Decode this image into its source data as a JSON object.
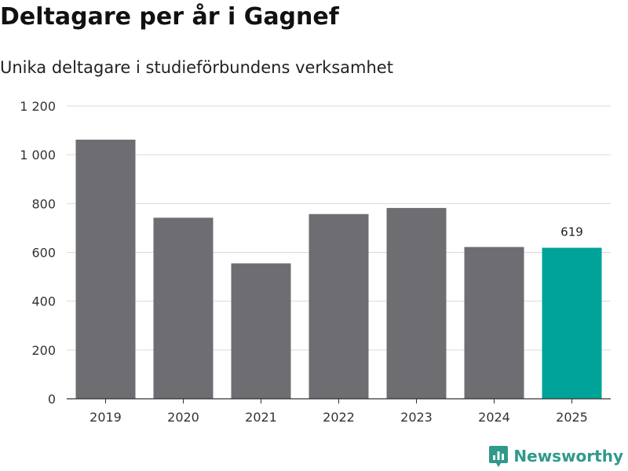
{
  "header": {
    "title": "Deltagare per år i Gagnef",
    "subtitle": "Unika deltagare i studieförbundens verksamhet"
  },
  "brand": {
    "name": "Newsworthy",
    "icon": "newsworthy-logo-icon",
    "color": "#2f9a8b"
  },
  "colors": {
    "bar": "#6e6d72",
    "highlight": "#00a398",
    "grid": "#d9d9d9",
    "axis": "#333333"
  },
  "chart_data": {
    "type": "bar",
    "title": "Deltagare per år i Gagnef",
    "subtitle": "Unika deltagare i studieförbundens verksamhet",
    "xlabel": "",
    "ylabel": "",
    "categories": [
      "2019",
      "2020",
      "2021",
      "2022",
      "2023",
      "2024",
      "2025"
    ],
    "values": [
      1062,
      742,
      555,
      757,
      782,
      622,
      619
    ],
    "highlight_index": 6,
    "data_labels": [
      {
        "category": "2025",
        "text": "619"
      }
    ],
    "ylim": [
      0,
      1200
    ],
    "yticks": [
      0,
      200,
      400,
      600,
      800,
      1000,
      1200
    ],
    "ytick_labels": [
      "0",
      "200",
      "400",
      "600",
      "800",
      "1 000",
      "1 200"
    ],
    "grid": true,
    "legend": "none"
  }
}
